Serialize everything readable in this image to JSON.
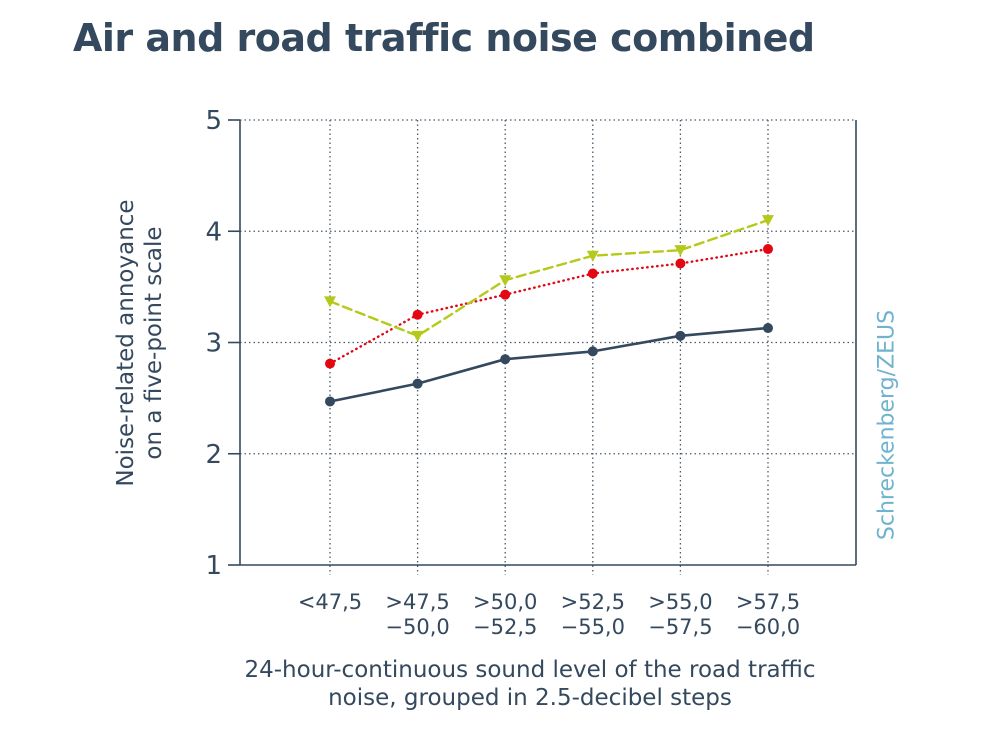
{
  "title": "Air and road traffic noise combined",
  "credit": "Schreckenberg/ZEUS",
  "colors": {
    "text": "#34495e",
    "axis": "#34495e",
    "grid": "#4a5a6a",
    "credit": "#6fb3cf"
  },
  "chart_data": {
    "type": "line",
    "xlabel_lines": [
      "24-hour-continuous sound level of the road traffic",
      "noise, grouped in 2.5-decibel steps"
    ],
    "ylabel_lines": [
      "Noise-related annoyance",
      "on a five-point scale"
    ],
    "categories": [
      [
        "<47,5"
      ],
      [
        ">47,5",
        "−50,0"
      ],
      [
        ">50,0",
        "−52,5"
      ],
      [
        ">52,5",
        "−55,0"
      ],
      [
        ">55,0",
        "−57,5"
      ],
      [
        ">57,5",
        "−60,0"
      ]
    ],
    "ylim": [
      1,
      5
    ],
    "yticks": [
      1,
      2,
      3,
      4,
      5
    ],
    "grid": true,
    "series": [
      {
        "values": [
          2.47,
          2.63,
          2.85,
          2.92,
          3.06,
          3.13
        ],
        "color": "#34495e",
        "style": "solid",
        "marker": "circle"
      },
      {
        "values": [
          2.81,
          3.25,
          3.43,
          3.62,
          3.71,
          3.84
        ],
        "color": "#e30613",
        "style": "dotted",
        "marker": "circle"
      },
      {
        "values": [
          3.37,
          3.06,
          3.56,
          3.78,
          3.83,
          4.1
        ],
        "color": "#b5c918",
        "style": "dashed",
        "marker": "triangle-down"
      }
    ]
  }
}
